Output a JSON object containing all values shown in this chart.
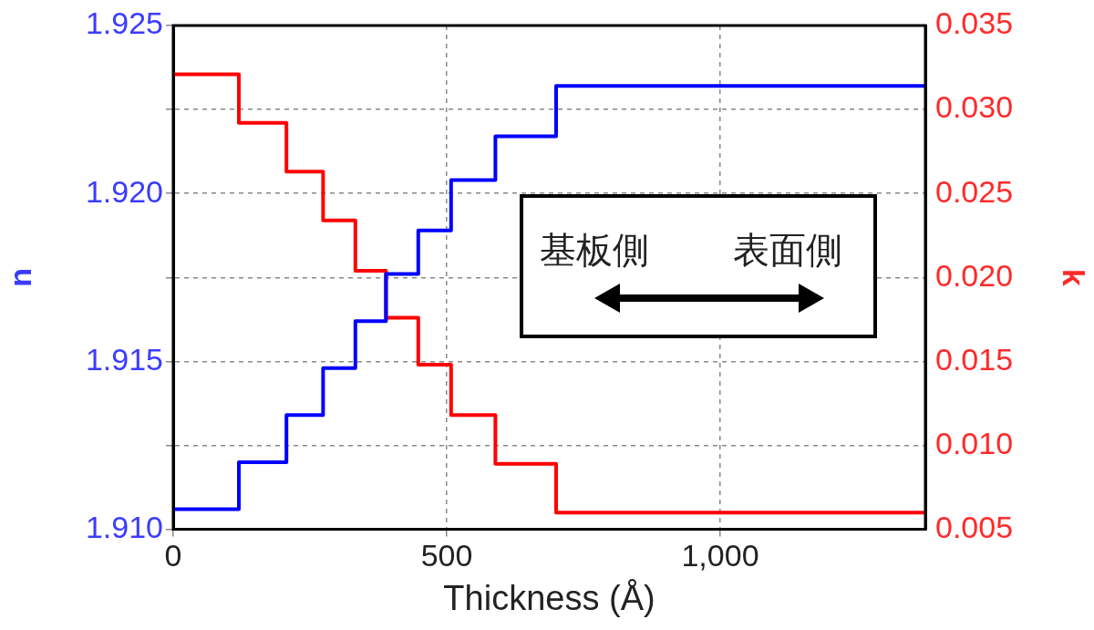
{
  "chart_data": {
    "type": "step",
    "xlabel": "Thickness (Å)",
    "ylabel": "n",
    "y2label": "k",
    "annotations": [
      "基板側",
      "表面側"
    ],
    "series": [
      {
        "color": "#0000ff",
        "x": [
          0,
          120,
          207,
          274,
          333,
          389,
          448,
          508,
          589,
          700,
          1375
        ],
        "values": [
          1.9106,
          1.912,
          1.9134,
          1.9148,
          1.9162,
          1.9176,
          1.9189,
          1.9204,
          1.9217,
          1.9232,
          1.9232
        ]
      },
      {
        "color": "#ff0000",
        "axis": "y2",
        "x": [
          0,
          120,
          207,
          274,
          333,
          389,
          448,
          508,
          589,
          700,
          1375
        ],
        "values": [
          0.0321,
          0.0292,
          0.0263,
          0.0234,
          0.0204,
          0.0176,
          0.0148,
          0.0118,
          0.0089,
          0.006,
          0.006
        ]
      }
    ],
    "xlim": [
      0,
      1375
    ],
    "xticks": [
      0,
      500,
      {
        "value": 1000,
        "label": "1,000"
      }
    ],
    "ylim": [
      1.91,
      1.925
    ],
    "yticks": [
      {
        "value": 1.91,
        "label": "1.910"
      },
      {
        "value": 1.9125,
        "label": null
      },
      {
        "value": 1.915,
        "label": "1.915"
      },
      {
        "value": 1.9175,
        "label": null
      },
      {
        "value": 1.92,
        "label": "1.920"
      },
      {
        "value": 1.9225,
        "label": null
      },
      {
        "value": 1.925,
        "label": "1.925"
      }
    ],
    "y2lim": [
      0.005,
      0.035
    ],
    "y2ticks": [
      {
        "value": 0.005,
        "label": "0.005"
      },
      {
        "value": 0.01,
        "label": "0.010"
      },
      {
        "value": 0.015,
        "label": "0.015"
      },
      {
        "value": 0.02,
        "label": "0.020"
      },
      {
        "value": 0.025,
        "label": "0.025"
      },
      {
        "value": 0.03,
        "label": "0.030"
      },
      {
        "value": 0.035,
        "label": "0.035"
      }
    ],
    "grid": true
  }
}
